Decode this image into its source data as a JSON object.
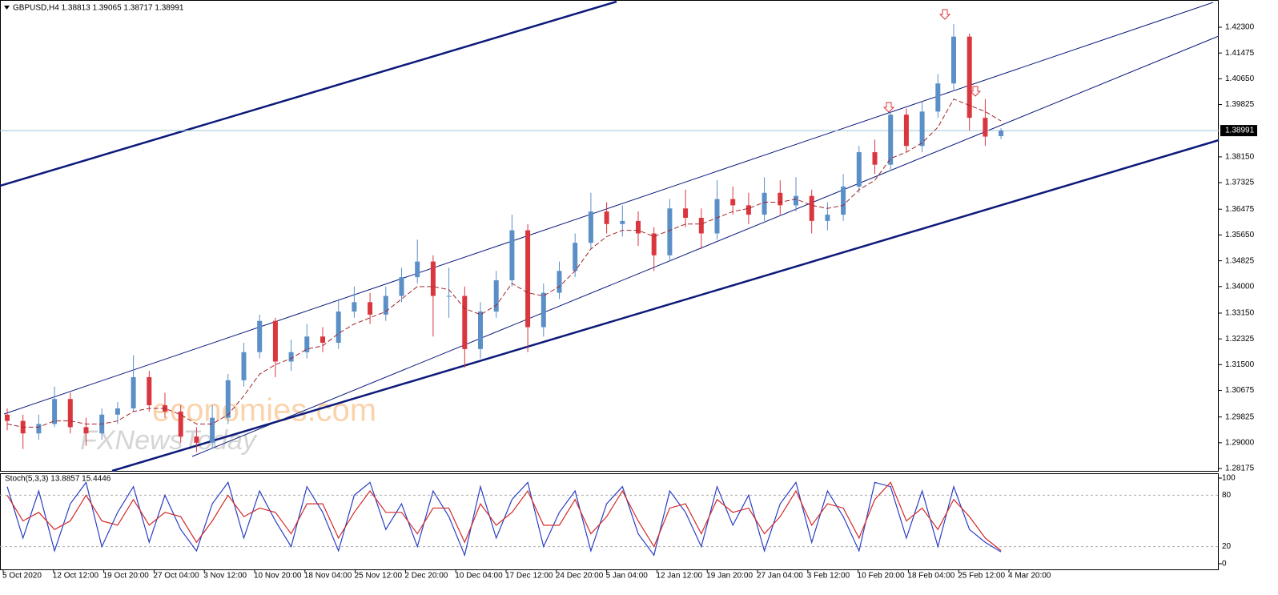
{
  "chart_data": {
    "type": "candlestick",
    "title": "GBPUSD,H4  1.38813 1.39065 1.38717 1.38991",
    "watermark": [
      "economies.com",
      "FXNewsToday"
    ],
    "bull_color": "#5b8fc7",
    "bear_color": "#d9363e",
    "ma_color": "#a0262b",
    "candles": [
      [
        1.299,
        1.301,
        1.294,
        1.297
      ],
      [
        1.297,
        1.299,
        1.288,
        1.293
      ],
      [
        1.293,
        1.299,
        1.291,
        1.296
      ],
      [
        1.296,
        1.308,
        1.295,
        1.304
      ],
      [
        1.304,
        1.306,
        1.293,
        1.295
      ],
      [
        1.295,
        1.298,
        1.289,
        1.293
      ],
      [
        1.293,
        1.301,
        1.291,
        1.299
      ],
      [
        1.299,
        1.303,
        1.296,
        1.301
      ],
      [
        1.301,
        1.318,
        1.3,
        1.311
      ],
      [
        1.311,
        1.313,
        1.3,
        1.302
      ],
      [
        1.302,
        1.306,
        1.298,
        1.3
      ],
      [
        1.3,
        1.302,
        1.29,
        1.292
      ],
      [
        1.292,
        1.295,
        1.287,
        1.29
      ],
      [
        1.29,
        1.302,
        1.288,
        1.298
      ],
      [
        1.298,
        1.312,
        1.296,
        1.31
      ],
      [
        1.31,
        1.322,
        1.308,
        1.319
      ],
      [
        1.319,
        1.331,
        1.317,
        1.329
      ],
      [
        1.329,
        1.33,
        1.311,
        1.316
      ],
      [
        1.316,
        1.323,
        1.313,
        1.319
      ],
      [
        1.319,
        1.328,
        1.317,
        1.324
      ],
      [
        1.324,
        1.327,
        1.319,
        1.322
      ],
      [
        1.322,
        1.336,
        1.32,
        1.332
      ],
      [
        1.332,
        1.34,
        1.33,
        1.335
      ],
      [
        1.335,
        1.338,
        1.328,
        1.331
      ],
      [
        1.331,
        1.34,
        1.329,
        1.337
      ],
      [
        1.337,
        1.346,
        1.335,
        1.343
      ],
      [
        1.343,
        1.355,
        1.341,
        1.348
      ],
      [
        1.348,
        1.35,
        1.324,
        1.337
      ],
      [
        1.337,
        1.346,
        1.33,
        1.337
      ],
      [
        1.337,
        1.34,
        1.314,
        1.32
      ],
      [
        1.32,
        1.335,
        1.317,
        1.332
      ],
      [
        1.332,
        1.345,
        1.33,
        1.342
      ],
      [
        1.342,
        1.363,
        1.34,
        1.358
      ],
      [
        1.358,
        1.36,
        1.319,
        1.327
      ],
      [
        1.327,
        1.341,
        1.324,
        1.338
      ],
      [
        1.338,
        1.348,
        1.336,
        1.345
      ],
      [
        1.345,
        1.357,
        1.343,
        1.354
      ],
      [
        1.354,
        1.37,
        1.352,
        1.364
      ],
      [
        1.364,
        1.367,
        1.357,
        1.36
      ],
      [
        1.36,
        1.366,
        1.356,
        1.361
      ],
      [
        1.361,
        1.364,
        1.353,
        1.357
      ],
      [
        1.357,
        1.359,
        1.345,
        1.35
      ],
      [
        1.35,
        1.368,
        1.348,
        1.365
      ],
      [
        1.365,
        1.371,
        1.359,
        1.362
      ],
      [
        1.362,
        1.365,
        1.352,
        1.357
      ],
      [
        1.357,
        1.374,
        1.355,
        1.368
      ],
      [
        1.368,
        1.372,
        1.363,
        1.366
      ],
      [
        1.366,
        1.37,
        1.36,
        1.363
      ],
      [
        1.363,
        1.375,
        1.361,
        1.37
      ],
      [
        1.37,
        1.374,
        1.363,
        1.366
      ],
      [
        1.366,
        1.375,
        1.364,
        1.369
      ],
      [
        1.369,
        1.371,
        1.357,
        1.361
      ],
      [
        1.361,
        1.367,
        1.358,
        1.363
      ],
      [
        1.363,
        1.376,
        1.361,
        1.372
      ],
      [
        1.372,
        1.385,
        1.37,
        1.383
      ],
      [
        1.383,
        1.387,
        1.376,
        1.379
      ],
      [
        1.379,
        1.396,
        1.377,
        1.395
      ],
      [
        1.395,
        1.397,
        1.383,
        1.385
      ],
      [
        1.385,
        1.399,
        1.383,
        1.396
      ],
      [
        1.396,
        1.408,
        1.394,
        1.405
      ],
      [
        1.405,
        1.424,
        1.403,
        1.42
      ],
      [
        1.42,
        1.421,
        1.39,
        1.394
      ],
      [
        1.394,
        1.4,
        1.385,
        1.388
      ],
      [
        1.38813,
        1.39065,
        1.38717,
        1.38991
      ]
    ],
    "ma": [
      1.296,
      1.295,
      1.295,
      1.297,
      1.297,
      1.296,
      1.296,
      1.297,
      1.3,
      1.301,
      1.301,
      1.299,
      1.296,
      1.296,
      1.299,
      1.305,
      1.312,
      1.315,
      1.317,
      1.32,
      1.321,
      1.325,
      1.328,
      1.33,
      1.332,
      1.336,
      1.34,
      1.34,
      1.339,
      1.333,
      1.331,
      1.334,
      1.341,
      1.338,
      1.337,
      1.34,
      1.345,
      1.352,
      1.356,
      1.358,
      1.358,
      1.356,
      1.358,
      1.36,
      1.36,
      1.362,
      1.364,
      1.365,
      1.367,
      1.367,
      1.368,
      1.366,
      1.365,
      1.366,
      1.371,
      1.374,
      1.381,
      1.383,
      1.386,
      1.391,
      1.4,
      1.398,
      1.396,
      1.393
    ],
    "ylim": [
      1.281,
      1.4312
    ],
    "yticks": [
      {
        "value": 1.423,
        "label": "1.42300"
      },
      {
        "value": 1.41475,
        "label": "1.41475"
      },
      {
        "value": 1.4065,
        "label": "1.40650"
      },
      {
        "value": 1.39825,
        "label": "1.39825"
      },
      {
        "value": 1.3815,
        "label": "1.38150"
      },
      {
        "value": 1.37325,
        "label": "1.37325"
      },
      {
        "value": 1.36475,
        "label": "1.36475"
      },
      {
        "value": 1.3565,
        "label": "1.35650"
      },
      {
        "value": 1.34825,
        "label": "1.34825"
      },
      {
        "value": 1.34,
        "label": "1.34000"
      },
      {
        "value": 1.3315,
        "label": "1.33150"
      },
      {
        "value": 1.32325,
        "label": "1.32325"
      },
      {
        "value": 1.315,
        "label": "1.31500"
      },
      {
        "value": 1.30675,
        "label": "1.30675"
      },
      {
        "value": 1.29825,
        "label": "1.29825"
      },
      {
        "value": 1.29,
        "label": "1.29000"
      },
      {
        "value": 1.28175,
        "label": "1.28175"
      }
    ],
    "current": {
      "value": 1.38991,
      "label": "1.38991"
    },
    "xlabels": [
      "5 Oct 2020",
      "12 Oct 12:00",
      "19 Oct 20:00",
      "27 Oct 04:00",
      "3 Nov 12:00",
      "10 Nov 20:00",
      "18 Nov 04:00",
      "25 Nov 12:00",
      "2 Dec 20:00",
      "10 Dec 04:00",
      "17 Dec 12:00",
      "24 Dec 20:00",
      "5 Jan 04:00",
      "12 Jan 12:00",
      "19 Jan 20:00",
      "27 Jan 04:00",
      "3 Feb 12:00",
      "10 Feb 20:00",
      "18 Feb 04:00",
      "25 Feb 12:00",
      "4 Mar 20:00"
    ],
    "indicator": {
      "type": "line",
      "title": "Stoch(5,3,3) 13.8857 15.4446",
      "series": [
        {
          "color": "#2a3fc4",
          "values": [
            90,
            30,
            85,
            15,
            70,
            95,
            20,
            60,
            90,
            25,
            80,
            40,
            15,
            70,
            95,
            30,
            85,
            50,
            20,
            90,
            60,
            15,
            80,
            95,
            40,
            70,
            20,
            85,
            55,
            10,
            90,
            30,
            75,
            95,
            20,
            60,
            85,
            15,
            70,
            90,
            35,
            10,
            85,
            60,
            20,
            90,
            45,
            80,
            15,
            70,
            95,
            25,
            85,
            55,
            15,
            95,
            90,
            30,
            85,
            20,
            90,
            40,
            25,
            13.8857
          ]
        },
        {
          "color": "#d42a2a",
          "values": [
            80,
            50,
            60,
            40,
            50,
            80,
            50,
            45,
            75,
            45,
            60,
            55,
            25,
            50,
            80,
            55,
            65,
            60,
            35,
            70,
            70,
            30,
            60,
            85,
            60,
            60,
            35,
            65,
            65,
            25,
            70,
            45,
            60,
            85,
            45,
            45,
            75,
            35,
            55,
            85,
            50,
            20,
            65,
            70,
            35,
            75,
            60,
            65,
            35,
            55,
            85,
            45,
            70,
            65,
            30,
            75,
            95,
            50,
            65,
            40,
            75,
            55,
            30,
            15.4446
          ]
        }
      ],
      "ylim": [
        0,
        100
      ],
      "yticks": [
        100,
        80,
        20,
        0
      ]
    }
  }
}
